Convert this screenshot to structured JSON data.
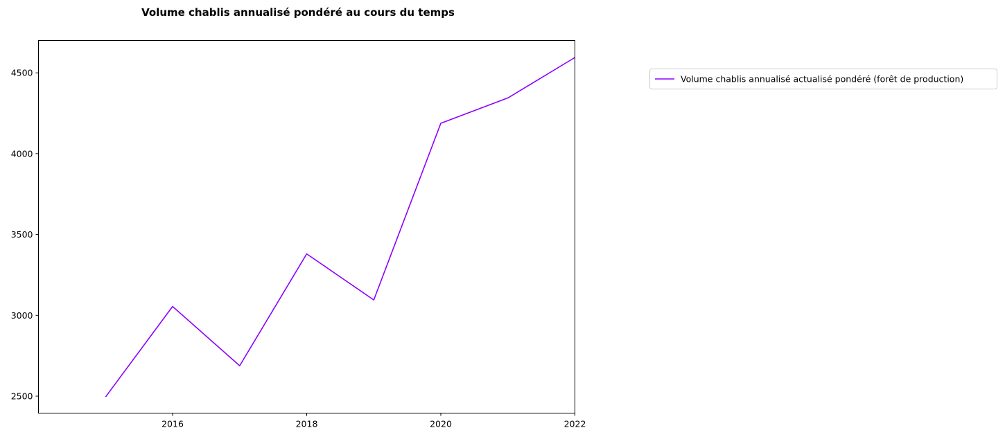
{
  "chart_data": {
    "type": "line",
    "title": "Volume chablis annualisé pondéré au cours du temps",
    "xlabel": "",
    "ylabel": "",
    "xlim": [
      2014.0,
      2022.0
    ],
    "ylim": [
      2395,
      4700
    ],
    "x_ticks": [
      2016,
      2018,
      2020,
      2022
    ],
    "y_ticks": [
      2500,
      3000,
      3500,
      4000,
      4500
    ],
    "grid": false,
    "legend_position": "upper-right-outside",
    "series": [
      {
        "name": "Volume chablis annualisé actualisé pondéré (forêt de production)",
        "color": "#8B00FF",
        "x": [
          2015,
          2016,
          2017,
          2018,
          2019,
          2020,
          2021,
          2022
        ],
        "y": [
          2495,
          3055,
          2688,
          3380,
          3095,
          4188,
          4345,
          4595
        ]
      }
    ]
  }
}
